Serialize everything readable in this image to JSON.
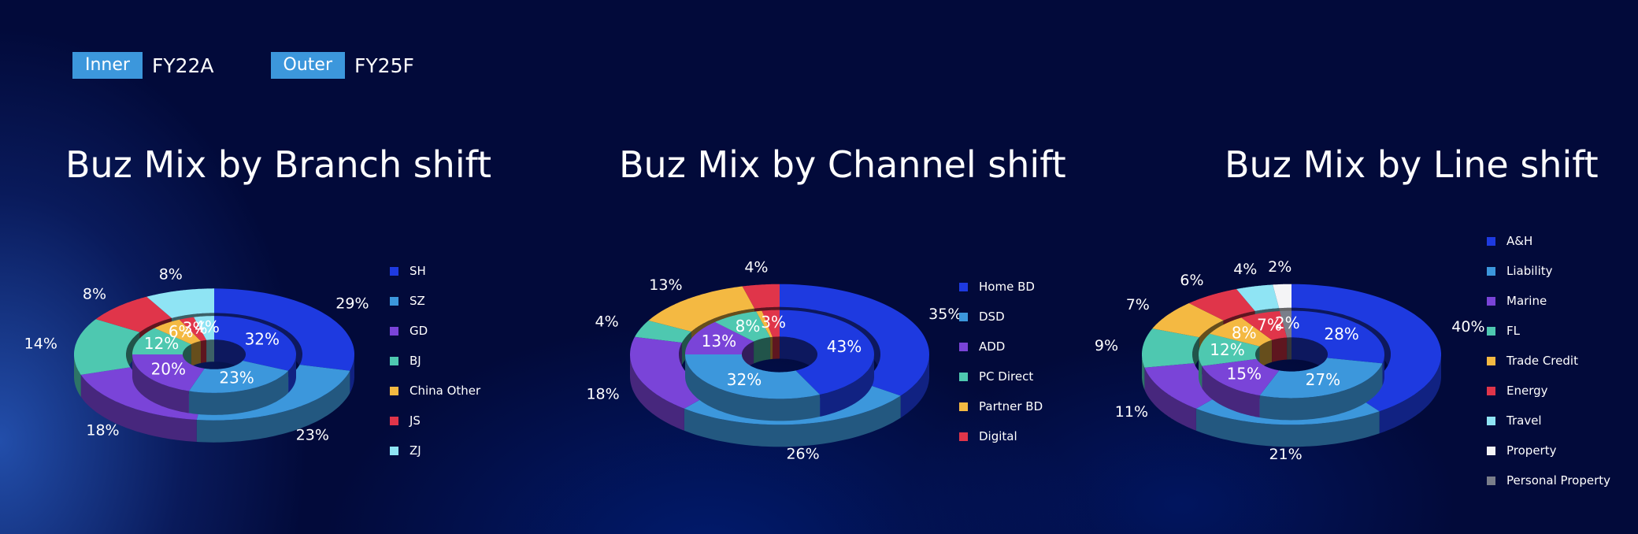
{
  "header": {
    "inner_label": "Inner",
    "inner_value": "FY22A",
    "outer_label": "Outer",
    "outer_value": "FY25F"
  },
  "colors": {
    "blue": "#1e3ae0",
    "lightblue": "#3c97dc",
    "purple": "#7a44d8",
    "teal": "#4ec8b0",
    "yellow": "#f4b942",
    "red": "#e0354a",
    "cyan": "#8fe4f4",
    "white": "#f4f4f6",
    "gray": "#7a7e8a"
  },
  "chart_data": [
    {
      "type": "pie",
      "title": "Buz Mix by Branch shift",
      "categories": [
        "SH",
        "SZ",
        "GD",
        "BJ",
        "China Other",
        "JS",
        "ZJ"
      ],
      "colors": [
        "#1e3ae0",
        "#3c97dc",
        "#7a44d8",
        "#4ec8b0",
        "#f4b942",
        "#e0354a",
        "#8fe4f4"
      ],
      "series": [
        {
          "name": "FY22A",
          "ring": "inner",
          "values": [
            32,
            23,
            20,
            12,
            6,
            3,
            4
          ],
          "labels": [
            "32%",
            "23%",
            "20%",
            "12%",
            "6%",
            "3%",
            "4%"
          ]
        },
        {
          "name": "FY25F",
          "ring": "outer",
          "values": [
            29,
            23,
            18,
            14,
            0,
            8,
            8
          ],
          "labels": [
            "29%",
            "23%",
            "18%",
            "14%",
            "",
            "8%",
            "8%"
          ]
        }
      ]
    },
    {
      "type": "pie",
      "title": "Buz Mix by Channel shift",
      "categories": [
        "Home BD",
        "DSD",
        "ADD",
        "PC Direct",
        "Partner BD",
        "Digital"
      ],
      "colors": [
        "#1e3ae0",
        "#3c97dc",
        "#7a44d8",
        "#4ec8b0",
        "#f4b942",
        "#e0354a"
      ],
      "series": [
        {
          "name": "FY22A",
          "ring": "inner",
          "values": [
            43,
            32,
            13,
            8,
            1,
            3
          ],
          "labels": [
            "43%",
            "32%",
            "13%",
            "8%",
            "",
            "3%"
          ]
        },
        {
          "name": "FY25F",
          "ring": "outer",
          "values": [
            35,
            26,
            18,
            4,
            13,
            4
          ],
          "labels": [
            "35%",
            "26%",
            "18%",
            "4%",
            "13%",
            "4%"
          ]
        }
      ]
    },
    {
      "type": "pie",
      "title": "Buz Mix by Line shift",
      "categories": [
        "A&H",
        "Liability",
        "Marine",
        "FL",
        "Trade Credit",
        "Energy",
        "Travel",
        "Property",
        "Personal Property"
      ],
      "colors": [
        "#1e3ae0",
        "#3c97dc",
        "#7a44d8",
        "#4ec8b0",
        "#f4b942",
        "#e0354a",
        "#8fe4f4",
        "#f4f4f6",
        "#7a7e8a"
      ],
      "series": [
        {
          "name": "FY22A",
          "ring": "inner",
          "values": [
            28,
            27,
            15,
            12,
            8,
            7,
            0,
            0,
            2
          ],
          "labels": [
            "28%",
            "27%",
            "15%",
            "12%",
            "8%",
            "7%",
            "",
            "",
            "2%"
          ]
        },
        {
          "name": "FY25F",
          "ring": "outer",
          "values": [
            40,
            21,
            11,
            9,
            7,
            6,
            4,
            2,
            0
          ],
          "labels": [
            "40%",
            "21%",
            "11%",
            "9%",
            "7%",
            "6%",
            "4%",
            "2%",
            ""
          ]
        }
      ]
    }
  ]
}
